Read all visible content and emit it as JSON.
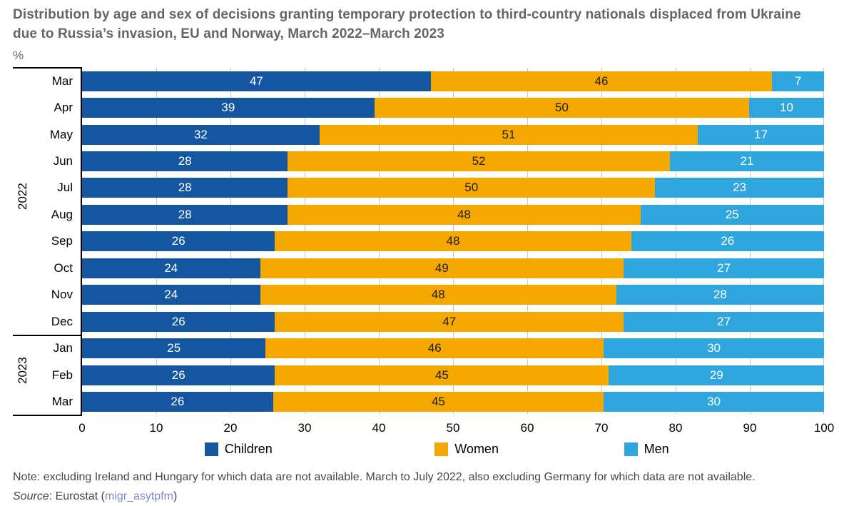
{
  "header": {
    "title": "Distribution by age and sex of decisions granting temporary protection to third-country nationals displaced from Ukraine due to Russia’s invasion, EU and Norway, March 2022–March 2023",
    "unit": "%"
  },
  "chart_data": {
    "type": "bar",
    "stacked": true,
    "orientation": "horizontal",
    "title": "Distribution by age and sex of decisions granting temporary protection to third-country nationals displaced from Ukraine due to Russia’s invasion, EU and Norway, March 2022–March 2023",
    "unit": "%",
    "xlim": [
      0,
      100
    ],
    "x_ticks": [
      0,
      10,
      20,
      30,
      40,
      50,
      60,
      70,
      80,
      90,
      100
    ],
    "grid": "vertical gridlines every 10, light gray, behind bars",
    "legend_position": "bottom",
    "groups": [
      {
        "year": "2022",
        "months": [
          "Mar",
          "Apr",
          "May",
          "Jun",
          "Jul",
          "Aug",
          "Sep",
          "Oct",
          "Nov",
          "Dec"
        ]
      },
      {
        "year": "2023",
        "months": [
          "Jan",
          "Feb",
          "Mar"
        ]
      }
    ],
    "categories": [
      "Mar",
      "Apr",
      "May",
      "Jun",
      "Jul",
      "Aug",
      "Sep",
      "Oct",
      "Nov",
      "Dec",
      "Jan",
      "Feb",
      "Mar"
    ],
    "series": [
      {
        "name": "Children",
        "color": "#1556A0",
        "label_color": "#ffffff",
        "values": [
          47,
          39,
          32,
          28,
          28,
          28,
          26,
          24,
          24,
          26,
          25,
          26,
          26
        ]
      },
      {
        "name": "Women",
        "color": "#F5A800",
        "label_color": "#1d1d1b",
        "values": [
          46,
          50,
          51,
          52,
          50,
          48,
          48,
          49,
          48,
          47,
          46,
          45,
          45
        ]
      },
      {
        "name": "Men",
        "color": "#30A6DE",
        "label_color": "#ffffff",
        "values": [
          7,
          10,
          17,
          21,
          23,
          25,
          26,
          27,
          28,
          27,
          30,
          29,
          30
        ]
      }
    ]
  },
  "footer": {
    "note": "Note: excluding Ireland and Hungary for which data are not available. March to July 2022, also excluding Germany for which data are not available.",
    "source_word": "Source",
    "source_mid": ": Eurostat (",
    "source_link": "migr_asytpfm",
    "source_end": ")"
  }
}
